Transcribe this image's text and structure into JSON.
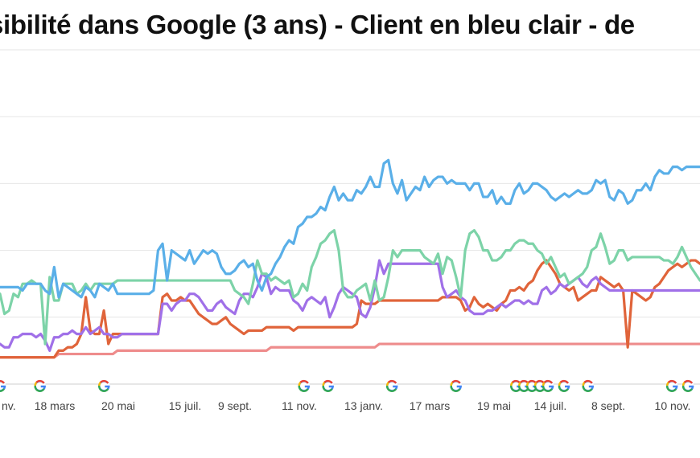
{
  "chart_data": {
    "type": "line",
    "title": "sibilité dans Google (3 ans) - Client en bleu clair - de",
    "xlabel": "",
    "ylabel": "",
    "categories": [
      "nv.",
      "18 mars",
      "20 mai",
      "15 juil.",
      "9 sept.",
      "11 nov.",
      "13 janv.",
      "17 mars",
      "19 mai",
      "14 juil.",
      "8 sept.",
      "10 nov."
    ],
    "ylim": [
      0,
      100
    ],
    "grid": true,
    "legend": "none",
    "x": [
      0,
      1,
      2,
      3,
      4,
      5,
      6,
      7,
      8,
      9,
      10,
      11,
      12,
      13,
      14,
      15,
      16,
      17,
      18,
      19,
      20,
      21,
      22,
      23,
      24,
      25,
      26,
      27,
      28,
      29,
      30,
      31,
      32,
      33,
      34,
      35,
      36,
      37,
      38,
      39,
      40,
      41,
      42,
      43,
      44,
      45,
      46,
      47,
      48,
      49,
      50,
      51,
      52,
      53,
      54,
      55,
      56,
      57,
      58,
      59,
      60,
      61,
      62,
      63,
      64,
      65,
      66,
      67,
      68,
      69,
      70,
      71,
      72,
      73,
      74,
      75,
      76,
      77,
      78,
      79,
      80,
      81,
      82,
      83,
      84,
      85,
      86,
      87,
      88,
      89,
      90,
      91,
      92,
      93,
      94,
      95,
      96,
      97,
      98,
      99,
      100,
      101,
      102,
      103,
      104,
      105,
      106,
      107,
      108,
      109,
      110,
      111,
      112,
      113,
      114,
      115,
      116,
      117,
      118,
      119,
      120,
      121,
      122,
      123,
      124,
      125,
      126,
      127,
      128,
      129,
      130,
      131,
      132,
      133,
      134,
      135,
      136,
      137,
      138,
      139,
      140,
      141,
      142,
      143,
      144,
      145,
      146,
      147,
      148,
      149,
      150,
      151,
      152,
      153,
      154,
      155
    ],
    "series": [
      {
        "color": "#5aafe8",
        "values": [
          29,
          29,
          29,
          29,
          29,
          28,
          30,
          30,
          30,
          30,
          28,
          27,
          35,
          26,
          30,
          29,
          28,
          27,
          26,
          29,
          28,
          26,
          30,
          29,
          28,
          30,
          27,
          27,
          27,
          27,
          27,
          27,
          27,
          27,
          28,
          40,
          42,
          31,
          40,
          39,
          38,
          37,
          40,
          36,
          38,
          40,
          39,
          40,
          39,
          35,
          33,
          33,
          34,
          36,
          37,
          35,
          36,
          31,
          28,
          32,
          33,
          36,
          38,
          41,
          43,
          42,
          47,
          48,
          50,
          50,
          51,
          53,
          52,
          56,
          59,
          55,
          57,
          55,
          55,
          58,
          57,
          59,
          62,
          59,
          59,
          66,
          67,
          60,
          57,
          61,
          55,
          57,
          59,
          58,
          62,
          59,
          61,
          62,
          62,
          60,
          61,
          60,
          60,
          60,
          58,
          60,
          60,
          56,
          56,
          58,
          54,
          56,
          54,
          54,
          58,
          60,
          57,
          58,
          60,
          60,
          59,
          58,
          56,
          55,
          56,
          57,
          56,
          57,
          58,
          57,
          57,
          58,
          61,
          60,
          61,
          56,
          55,
          58,
          57,
          54,
          55,
          58,
          58,
          60,
          58,
          62,
          64,
          63,
          63,
          65,
          65,
          64,
          65,
          65,
          65,
          65
        ]
      },
      {
        "color": "#7dd3a8",
        "values": [
          27,
          21,
          22,
          27,
          26,
          30,
          30,
          31,
          30,
          30,
          12,
          32,
          25,
          25,
          30,
          30,
          30,
          27,
          28,
          30,
          28,
          30,
          30,
          30,
          30,
          30,
          31,
          31,
          31,
          31,
          31,
          31,
          31,
          31,
          31,
          31,
          31,
          31,
          31,
          31,
          31,
          31,
          31,
          31,
          31,
          31,
          31,
          31,
          31,
          31,
          31,
          31,
          28,
          27,
          26,
          24,
          30,
          37,
          33,
          33,
          31,
          32,
          31,
          30,
          31,
          26,
          27,
          30,
          28,
          35,
          38,
          42,
          43,
          45,
          46,
          40,
          28,
          26,
          26,
          28,
          29,
          30,
          25,
          31,
          25,
          26,
          32,
          40,
          38,
          40,
          40,
          40,
          40,
          40,
          38,
          37,
          36,
          39,
          33,
          38,
          37,
          32,
          26,
          40,
          45,
          46,
          44,
          40,
          40,
          37,
          37,
          38,
          40,
          40,
          42,
          43,
          43,
          42,
          42,
          40,
          39,
          36,
          38,
          35,
          32,
          33,
          30,
          31,
          32,
          33,
          35,
          40,
          41,
          45,
          41,
          36,
          37,
          40,
          40,
          37,
          38,
          38,
          38,
          38,
          38,
          38,
          38,
          37,
          37,
          36,
          38,
          41,
          38,
          35,
          33,
          31
        ]
      },
      {
        "color": "#a070e8",
        "values": [
          12,
          11,
          11,
          14,
          14,
          15,
          15,
          15,
          14,
          15,
          13,
          10,
          14,
          14,
          15,
          15,
          16,
          15,
          15,
          17,
          15,
          16,
          17,
          15,
          15,
          14,
          14,
          15,
          15,
          15,
          15,
          15,
          15,
          15,
          15,
          15,
          24,
          24,
          22,
          24,
          25,
          25,
          27,
          27,
          26,
          24,
          22,
          22,
          24,
          25,
          23,
          22,
          21,
          25,
          27,
          27,
          26,
          29,
          33,
          32,
          27,
          29,
          28,
          28,
          28,
          25,
          24,
          22,
          25,
          26,
          25,
          24,
          26,
          20,
          23,
          27,
          29,
          28,
          27,
          26,
          21,
          20,
          23,
          29,
          37,
          33,
          36,
          36,
          36,
          36,
          36,
          36,
          36,
          36,
          36,
          36,
          36,
          36,
          29,
          26,
          27,
          28,
          26,
          25,
          22,
          21,
          21,
          21,
          22,
          22,
          23,
          24,
          23,
          24,
          25,
          25,
          24,
          25,
          24,
          24,
          28,
          29,
          27,
          28,
          30,
          29,
          30,
          31,
          32,
          30,
          29,
          31,
          32,
          30,
          29,
          28,
          28,
          28,
          28,
          28,
          28,
          28,
          28,
          28,
          28,
          28,
          28,
          28,
          28,
          28,
          28,
          28,
          28,
          28,
          28,
          28
        ]
      },
      {
        "color": "#e0643a",
        "values": [
          8,
          8,
          8,
          8,
          8,
          8,
          8,
          8,
          8,
          8,
          8,
          8,
          8,
          10,
          10,
          11,
          11,
          12,
          15,
          26,
          16,
          15,
          15,
          22,
          12,
          15,
          15,
          15,
          15,
          15,
          15,
          15,
          15,
          15,
          15,
          15,
          26,
          27,
          25,
          25,
          26,
          25,
          25,
          23,
          21,
          20,
          19,
          18,
          18,
          19,
          20,
          18,
          17,
          16,
          15,
          16,
          16,
          16,
          16,
          17,
          17,
          17,
          17,
          17,
          17,
          16,
          17,
          17,
          17,
          17,
          17,
          17,
          17,
          17,
          17,
          17,
          17,
          17,
          17,
          18,
          25,
          24,
          24,
          24,
          25,
          25,
          25,
          25,
          25,
          25,
          25,
          25,
          25,
          25,
          25,
          25,
          25,
          25,
          26,
          26,
          26,
          26,
          25,
          22,
          23,
          26,
          24,
          23,
          24,
          23,
          22,
          24,
          25,
          28,
          28,
          29,
          28,
          30,
          31,
          34,
          36,
          37,
          35,
          33,
          30,
          29,
          28,
          29,
          25,
          26,
          27,
          28,
          28,
          32,
          31,
          30,
          29,
          30,
          28,
          11,
          28,
          27,
          26,
          25,
          26,
          29,
          30,
          32,
          34,
          35,
          36,
          35,
          36,
          37,
          37,
          36
        ]
      },
      {
        "color": "#ee8c8c",
        "values": [
          8,
          8,
          8,
          8,
          8,
          8,
          8,
          8,
          8,
          8,
          8,
          8,
          8,
          9,
          9,
          9,
          9,
          9,
          9,
          9,
          9,
          9,
          9,
          9,
          9,
          9,
          10,
          10,
          10,
          10,
          10,
          10,
          10,
          10,
          10,
          10,
          10,
          10,
          10,
          10,
          10,
          10,
          10,
          10,
          10,
          10,
          10,
          10,
          10,
          10,
          10,
          10,
          10,
          10,
          10,
          10,
          10,
          10,
          10,
          10,
          11,
          11,
          11,
          11,
          11,
          11,
          11,
          11,
          11,
          11,
          11,
          11,
          11,
          11,
          11,
          11,
          11,
          11,
          11,
          11,
          11,
          11,
          11,
          11,
          12,
          12,
          12,
          12,
          12,
          12,
          12,
          12,
          12,
          12,
          12,
          12,
          12,
          12,
          12,
          12,
          12,
          12,
          12,
          12,
          12,
          12,
          12,
          12,
          12,
          12,
          12,
          12,
          12,
          12,
          12,
          12,
          12,
          12,
          12,
          12,
          12,
          12,
          12,
          12,
          12,
          12,
          12,
          12,
          12,
          12,
          12,
          12,
          12,
          12,
          12,
          12,
          12,
          12,
          12,
          12,
          12,
          12,
          12,
          12,
          12,
          12,
          12,
          12,
          12,
          12,
          12,
          12,
          12,
          12,
          12,
          12
        ]
      }
    ],
    "google_markers": [
      {
        "x": 0,
        "label": "G"
      },
      {
        "x": 10,
        "label": "G"
      },
      {
        "x": 26,
        "label": "G"
      },
      {
        "x": 76,
        "label": "G"
      },
      {
        "x": 82,
        "label": "G"
      },
      {
        "x": 98,
        "label": "G"
      },
      {
        "x": 114,
        "label": "G"
      },
      {
        "x": 129,
        "label": "G"
      },
      {
        "x": 131,
        "label": "G"
      },
      {
        "x": 133,
        "label": "G"
      },
      {
        "x": 135,
        "label": "G"
      },
      {
        "x": 137,
        "label": "G"
      },
      {
        "x": 141,
        "label": "G"
      },
      {
        "x": 147,
        "label": "G"
      },
      {
        "x": 168,
        "label": "G"
      },
      {
        "x": 172,
        "label": "G"
      }
    ],
    "google_colors": [
      "#4285f4",
      "#ea4335",
      "#fbbc05",
      "#34a853"
    ]
  }
}
